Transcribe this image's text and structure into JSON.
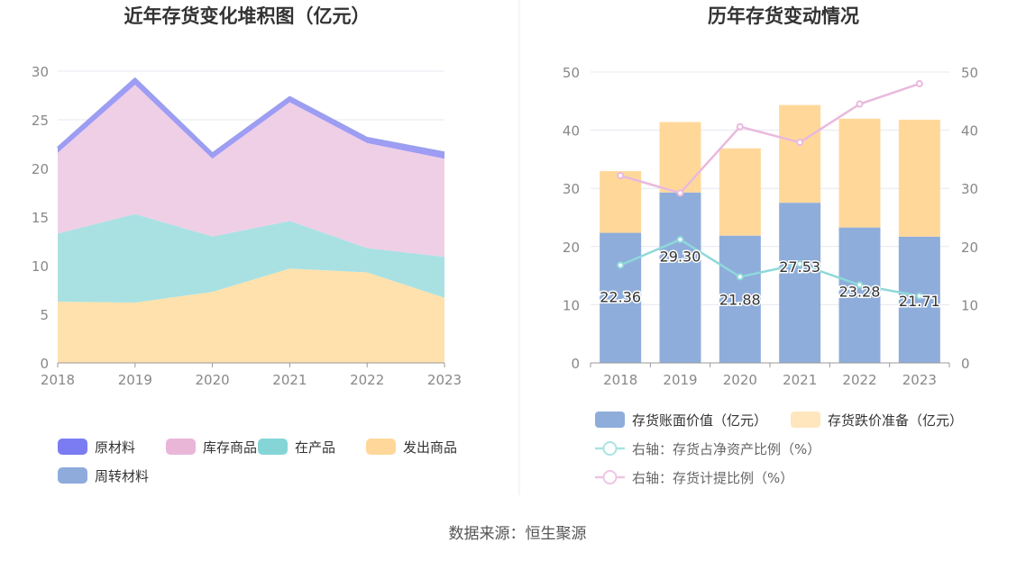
{
  "source": "数据来源：恒生聚源",
  "chart_data": [
    {
      "type": "area",
      "title": "近年存货变化堆积图（亿元）",
      "categories": [
        "2018",
        "2019",
        "2020",
        "2021",
        "2022",
        "2023"
      ],
      "ylim": [
        0,
        30
      ],
      "yticks": [
        0,
        5,
        10,
        15,
        20,
        25,
        30
      ],
      "series": [
        {
          "name": "发出商品",
          "values": [
            6.3,
            6.2,
            7.3,
            9.7,
            9.3,
            6.7
          ],
          "color": "#ffe1ad"
        },
        {
          "name": "在产品",
          "values": [
            7.0,
            9.1,
            5.7,
            4.9,
            2.5,
            4.2
          ],
          "color": "#a9e1e3"
        },
        {
          "name": "库存商品",
          "values": [
            8.3,
            13.3,
            8.0,
            12.2,
            10.8,
            10.1
          ],
          "color": "#efcfe6"
        },
        {
          "name": "原材料",
          "values": [
            0.5,
            0.6,
            0.5,
            0.5,
            0.5,
            0.6
          ],
          "color": "#9e9cf4"
        },
        {
          "name": "周转材料",
          "values": [
            0.05,
            0.05,
            0.05,
            0.05,
            0.05,
            0.05
          ],
          "color": "#8fa8d9"
        }
      ],
      "legend": [
        {
          "name": "原材料",
          "color": "#7b7cf2"
        },
        {
          "name": "库存商品",
          "color": "#e9b6d8"
        },
        {
          "name": "在产品",
          "color": "#86d5d6"
        },
        {
          "name": "发出商品",
          "color": "#ffd79b"
        },
        {
          "name": "周转材料",
          "color": "#8fabdc"
        }
      ]
    },
    {
      "type": "bar",
      "title": "历年存货变动情况",
      "categories": [
        "2018",
        "2019",
        "2020",
        "2021",
        "2022",
        "2023"
      ],
      "ylim": [
        0,
        50
      ],
      "yticks": [
        0,
        10,
        20,
        30,
        40,
        50
      ],
      "y2lim": [
        0,
        50
      ],
      "y2ticks": [
        0,
        10,
        20,
        30,
        40,
        50
      ],
      "bar_series": [
        {
          "name": "存货账面价值（亿元）",
          "values": [
            22.36,
            29.3,
            21.88,
            27.53,
            23.28,
            21.71
          ],
          "color": "#8eaddb",
          "labels": [
            "22.36",
            "29.30",
            "21.88",
            "27.53",
            "23.28",
            "21.71"
          ]
        },
        {
          "name": "存货跌价准备（亿元）",
          "values": [
            10.6,
            12.1,
            15.0,
            16.8,
            18.7,
            20.1
          ],
          "color": "#ffd899"
        }
      ],
      "line_series": [
        {
          "name": "右轴：存货占净资产比例（%）",
          "values": [
            16.8,
            21.2,
            14.8,
            17.0,
            13.4,
            11.5
          ],
          "color": "#8fd8da"
        },
        {
          "name": "右轴：存货计提比例（%）",
          "values": [
            32.2,
            29.2,
            40.6,
            37.9,
            44.5,
            48.0
          ],
          "color": "#e9b9dd"
        }
      ],
      "legend": [
        {
          "name": "存货账面价值（亿元）",
          "kind": "box",
          "color": "#8eaddb"
        },
        {
          "name": "存货跌价准备（亿元）",
          "kind": "box",
          "color": "#ffe6bd"
        },
        {
          "name": "右轴：存货占净资产比例（%）",
          "kind": "line",
          "color": "#a9e3e4"
        },
        {
          "name": "右轴：存货计提比例（%）",
          "kind": "line",
          "color": "#eec5e4"
        }
      ]
    }
  ]
}
